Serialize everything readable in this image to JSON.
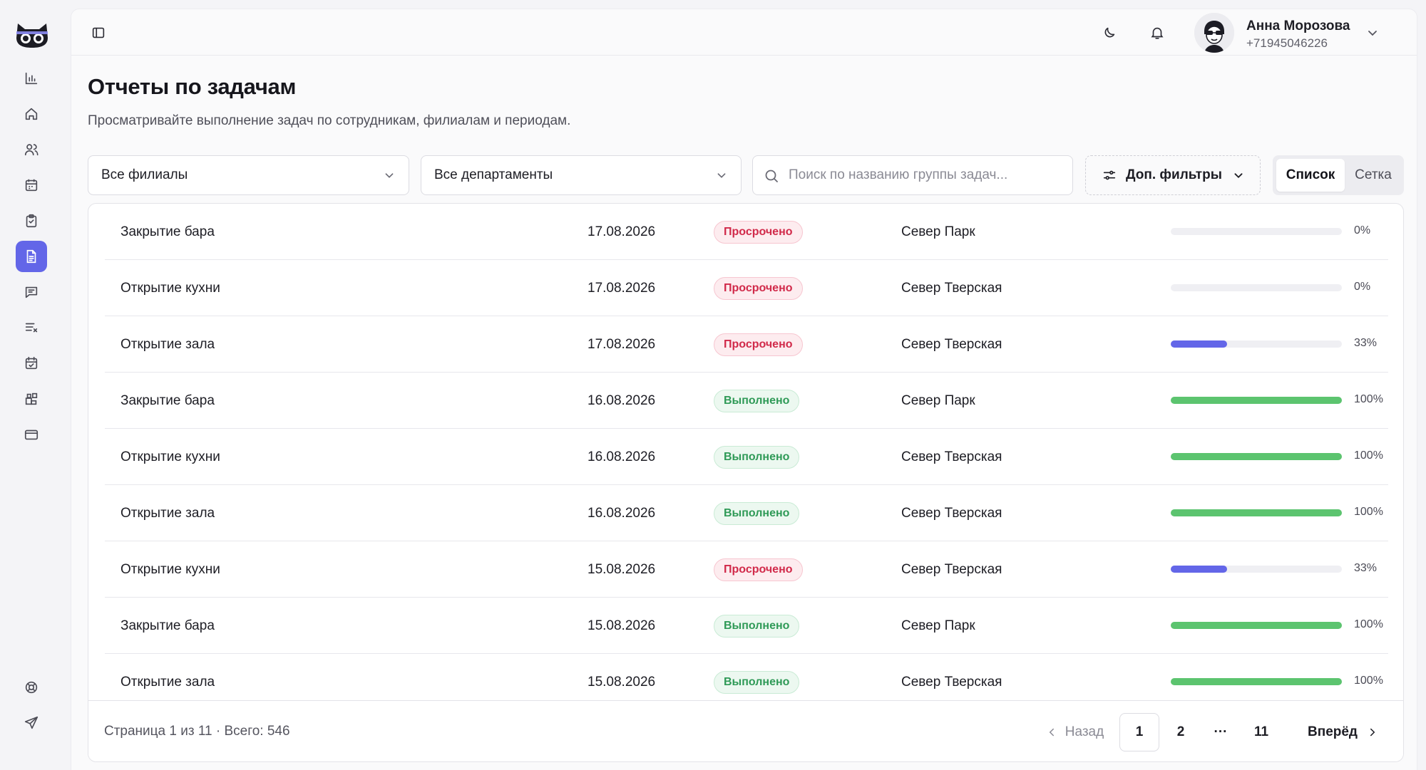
{
  "user": {
    "name": "Анна Морозова",
    "phone": "+71945046226"
  },
  "page": {
    "title": "Отчеты по задачам",
    "subtitle": "Просматривайте выполнение задач по сотрудникам, филиалам и периодам."
  },
  "filters": {
    "branches": "Все филиалы",
    "departments": "Все департаменты",
    "search_placeholder": "Поиск по названию группы задач...",
    "more_filters": "Доп. фильтры",
    "view_list": "Список",
    "view_grid": "Сетка"
  },
  "colors": {
    "accent": "#6366e8",
    "progress_done": "#5cc46f",
    "progress_partial": "#6366e8",
    "overdue": "#d12a4a",
    "done": "#2f9a57"
  },
  "rows": [
    {
      "name": "Закрытие бара",
      "date": "17.08.2026",
      "status": "Просрочено",
      "status_type": "overdue",
      "branch": "Север Парк",
      "progress": 0,
      "progress_label": "0%"
    },
    {
      "name": "Открытие кухни",
      "date": "17.08.2026",
      "status": "Просрочено",
      "status_type": "overdue",
      "branch": "Север Тверская",
      "progress": 0,
      "progress_label": "0%"
    },
    {
      "name": "Открытие зала",
      "date": "17.08.2026",
      "status": "Просрочено",
      "status_type": "overdue",
      "branch": "Север Тверская",
      "progress": 33,
      "progress_label": "33%"
    },
    {
      "name": "Закрытие бара",
      "date": "16.08.2026",
      "status": "Выполнено",
      "status_type": "done",
      "branch": "Север Парк",
      "progress": 100,
      "progress_label": "100%"
    },
    {
      "name": "Открытие кухни",
      "date": "16.08.2026",
      "status": "Выполнено",
      "status_type": "done",
      "branch": "Север Тверская",
      "progress": 100,
      "progress_label": "100%"
    },
    {
      "name": "Открытие зала",
      "date": "16.08.2026",
      "status": "Выполнено",
      "status_type": "done",
      "branch": "Север Тверская",
      "progress": 100,
      "progress_label": "100%"
    },
    {
      "name": "Открытие кухни",
      "date": "15.08.2026",
      "status": "Просрочено",
      "status_type": "overdue",
      "branch": "Север Тверская",
      "progress": 33,
      "progress_label": "33%"
    },
    {
      "name": "Закрытие бара",
      "date": "15.08.2026",
      "status": "Выполнено",
      "status_type": "done",
      "branch": "Север Парк",
      "progress": 100,
      "progress_label": "100%"
    },
    {
      "name": "Открытие зала",
      "date": "15.08.2026",
      "status": "Выполнено",
      "status_type": "done",
      "branch": "Север Тверская",
      "progress": 100,
      "progress_label": "100%"
    }
  ],
  "pagination": {
    "info": "Страница 1 из 11 · Всего: 546",
    "prev": "Назад",
    "next": "Вперёд",
    "pages": [
      "1",
      "2",
      "···",
      "11"
    ],
    "current": "1"
  },
  "sidebar": {
    "icons": [
      "bar-chart-icon",
      "home-icon",
      "users-icon",
      "calendar-icon",
      "clipboard-check-icon",
      "file-report-icon",
      "message-icon",
      "list-x-icon",
      "calendar-check-icon",
      "widgets-icon",
      "card-icon",
      "lifebuoy-icon",
      "send-icon"
    ],
    "active": "file-report-icon"
  }
}
